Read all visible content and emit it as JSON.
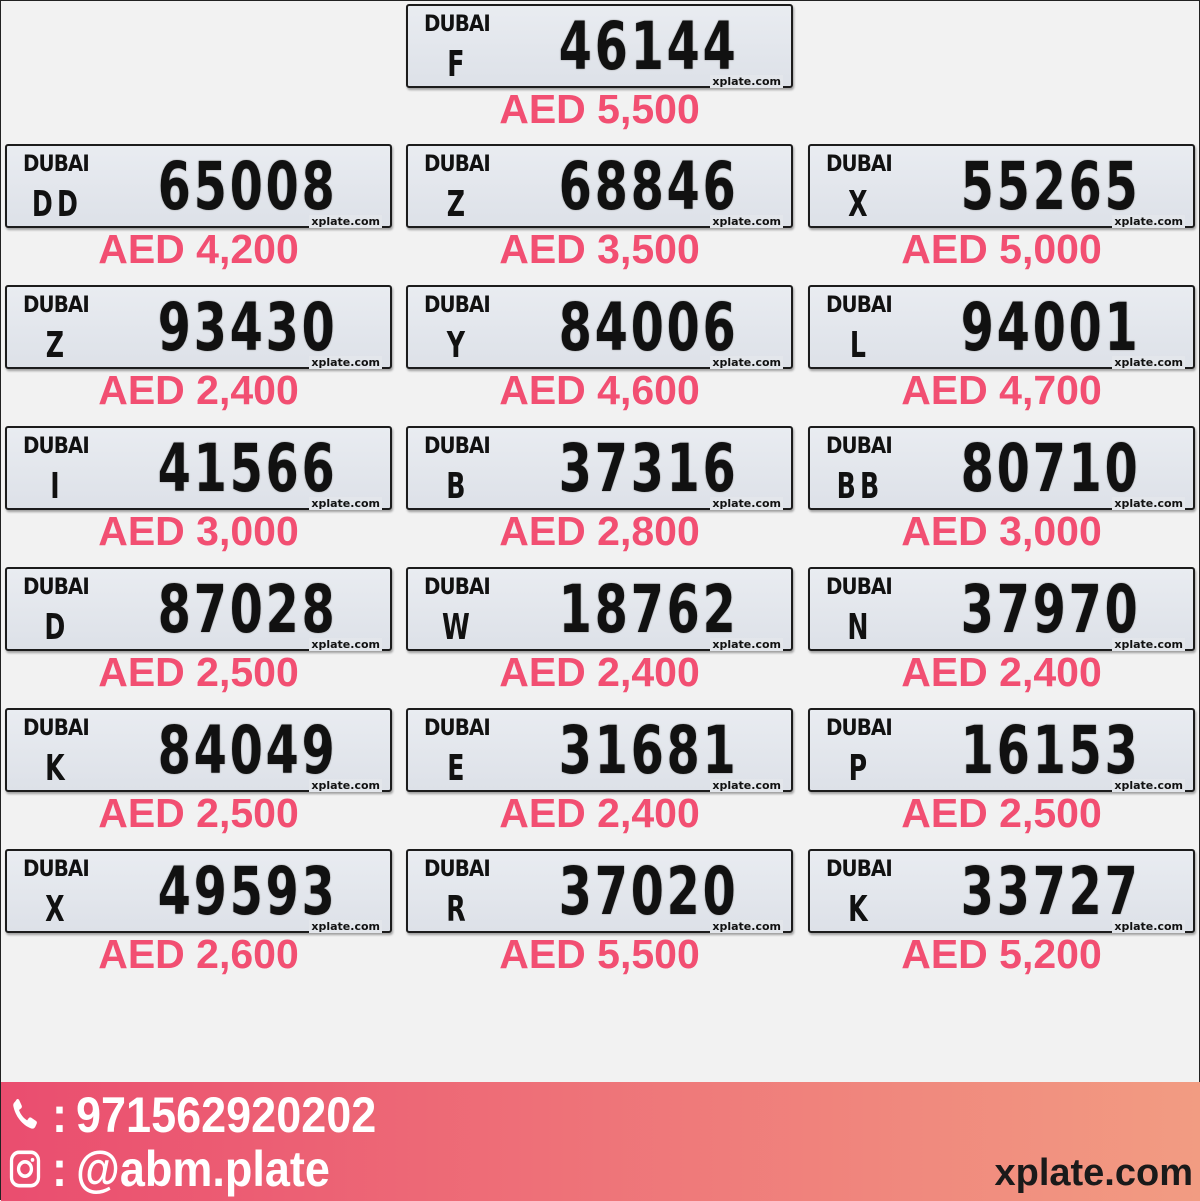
{
  "logo_text": "DUBAI",
  "watermark": "xplate.com",
  "plates": [
    {
      "code": "F",
      "number": "46144",
      "price": "AED 5,500"
    },
    {
      "code": "DD",
      "number": "65008",
      "price": "AED 4,200"
    },
    {
      "code": "Z",
      "number": "68846",
      "price": "AED 3,500"
    },
    {
      "code": "X",
      "number": "55265",
      "price": "AED 5,000"
    },
    {
      "code": "Z",
      "number": "93430",
      "price": "AED 2,400"
    },
    {
      "code": "Y",
      "number": "84006",
      "price": "AED 4,600"
    },
    {
      "code": "L",
      "number": "94001",
      "price": "AED 4,700"
    },
    {
      "code": "I",
      "number": "41566",
      "price": "AED 3,000"
    },
    {
      "code": "B",
      "number": "37316",
      "price": "AED 2,800"
    },
    {
      "code": "BB",
      "number": "80710",
      "price": "AED 3,000"
    },
    {
      "code": "D",
      "number": "87028",
      "price": "AED 2,500"
    },
    {
      "code": "W",
      "number": "18762",
      "price": "AED 2,400"
    },
    {
      "code": "N",
      "number": "37970",
      "price": "AED 2,400"
    },
    {
      "code": "K",
      "number": "84049",
      "price": "AED 2,500"
    },
    {
      "code": "E",
      "number": "31681",
      "price": "AED 2,400"
    },
    {
      "code": "P",
      "number": "16153",
      "price": "AED 2,500"
    },
    {
      "code": "X",
      "number": "49593",
      "price": "AED 2,600"
    },
    {
      "code": "R",
      "number": "37020",
      "price": "AED 5,500"
    },
    {
      "code": "K",
      "number": "33727",
      "price": "AED 5,200"
    }
  ],
  "footer": {
    "phone_separator": ":",
    "phone": "971562920202",
    "instagram_separator": ":",
    "instagram": "@abm.plate",
    "site": "xplate.com"
  },
  "colors": {
    "price": "#f24f72",
    "footer_start": "#ea4d6f",
    "footer_end": "#f29c82"
  }
}
